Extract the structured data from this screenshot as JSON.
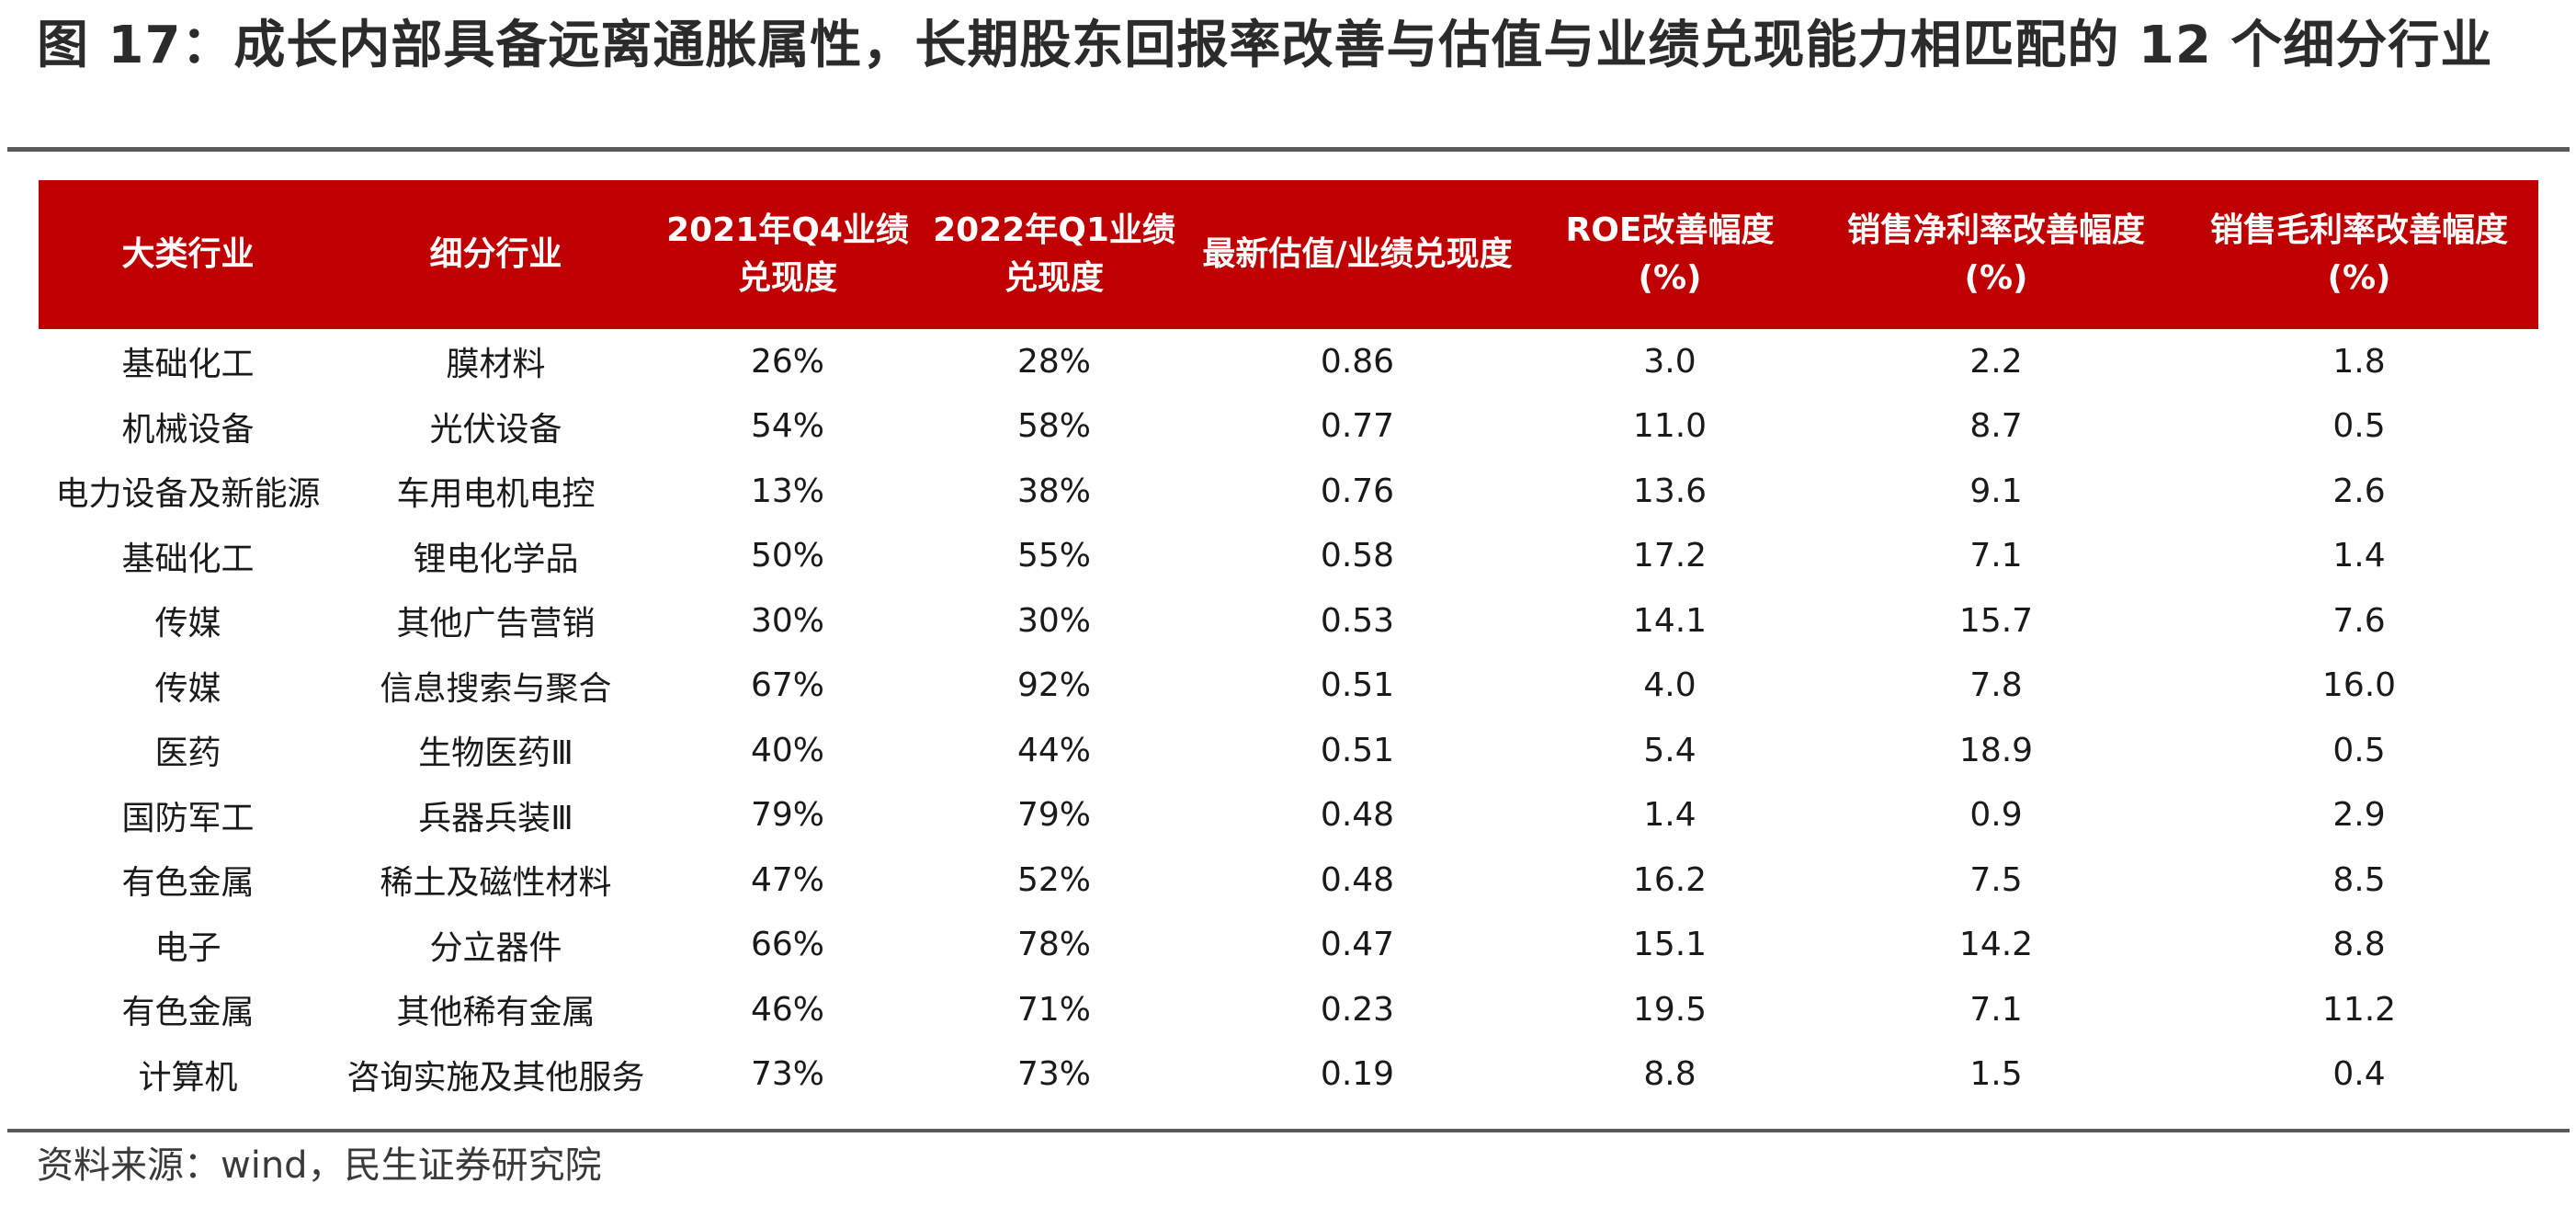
{
  "title": "图 17：成长内部具备远离通胀属性，长期股东回报率改善与估值与业绩兑现能力相匹配的 12 个细分行业",
  "table": {
    "headers": [
      {
        "line1": "大类行业",
        "line2": ""
      },
      {
        "line1": "细分行业",
        "line2": ""
      },
      {
        "line1": "2021年Q4业绩",
        "line2": "兑现度"
      },
      {
        "line1": "2022年Q1业绩",
        "line2": "兑现度"
      },
      {
        "line1": "最新估值/业绩兑现度",
        "line2": ""
      },
      {
        "line1": "ROE改善幅度",
        "line2": "(%)"
      },
      {
        "line1": "销售净利率改善幅度",
        "line2": "(%)"
      },
      {
        "line1": "销售毛利率改善幅度",
        "line2": "(%)"
      }
    ],
    "rows": [
      [
        "基础化工",
        "膜材料",
        "26%",
        "28%",
        "0.86",
        "3.0",
        "2.2",
        "1.8"
      ],
      [
        "机械设备",
        "光伏设备",
        "54%",
        "58%",
        "0.77",
        "11.0",
        "8.7",
        "0.5"
      ],
      [
        "电力设备及新能源",
        "车用电机电控",
        "13%",
        "38%",
        "0.76",
        "13.6",
        "9.1",
        "2.6"
      ],
      [
        "基础化工",
        "锂电化学品",
        "50%",
        "55%",
        "0.58",
        "17.2",
        "7.1",
        "1.4"
      ],
      [
        "传媒",
        "其他广告营销",
        "30%",
        "30%",
        "0.53",
        "14.1",
        "15.7",
        "7.6"
      ],
      [
        "传媒",
        "信息搜索与聚合",
        "67%",
        "92%",
        "0.51",
        "4.0",
        "7.8",
        "16.0"
      ],
      [
        "医药",
        "生物医药Ⅲ",
        "40%",
        "44%",
        "0.51",
        "5.4",
        "18.9",
        "0.5"
      ],
      [
        "国防军工",
        "兵器兵装Ⅲ",
        "79%",
        "79%",
        "0.48",
        "1.4",
        "0.9",
        "2.9"
      ],
      [
        "有色金属",
        "稀土及磁性材料",
        "47%",
        "52%",
        "0.48",
        "16.2",
        "7.5",
        "8.5"
      ],
      [
        "电子",
        "分立器件",
        "66%",
        "78%",
        "0.47",
        "15.1",
        "14.2",
        "8.8"
      ],
      [
        "有色金属",
        "其他稀有金属",
        "46%",
        "71%",
        "0.23",
        "19.5",
        "7.1",
        "11.2"
      ],
      [
        "计算机",
        "咨询实施及其他服务",
        "73%",
        "73%",
        "0.19",
        "8.8",
        "1.5",
        "0.4"
      ]
    ]
  },
  "source": "资料来源：wind，民生证券研究院",
  "colors": {
    "header_bg": "#c00000",
    "header_text": "#ffffff",
    "rule": "#5a5a5a"
  }
}
